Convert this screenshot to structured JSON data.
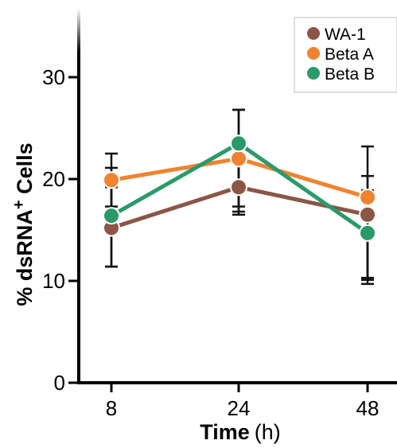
{
  "chart_data": {
    "type": "line",
    "x": [
      "8",
      "24",
      "48"
    ],
    "xlabel_main": "Time",
    "xlabel_unit": "(h)",
    "ylabel": "% dsRNA",
    "ylabel_sup": "+",
    "ylabel_end": " Cells",
    "yticks": [
      "0",
      "10",
      "20",
      "30"
    ],
    "ylim": [
      0,
      37
    ],
    "series": [
      {
        "name": "WA-1",
        "color": "#8B5646",
        "values": [
          15.2,
          19.2,
          16.5
        ],
        "err_low": [
          11.4,
          16.5,
          10.3
        ],
        "err_high": [
          19.2,
          22.0,
          23.2
        ]
      },
      {
        "name": "Beta A",
        "color": "#F08330",
        "values": [
          19.9,
          22.0,
          18.2
        ],
        "err_low": [
          17.3,
          17.3,
          9.7
        ],
        "err_high": [
          22.5,
          26.8,
          18.9
        ]
      },
      {
        "name": "Beta B",
        "color": "#2A9A6A",
        "values": [
          16.4,
          23.5,
          14.7
        ],
        "err_low": [
          11.4,
          16.8,
          10.1
        ],
        "err_high": [
          21.1,
          26.8,
          20.3
        ]
      }
    ],
    "legend_position": "top-right"
  }
}
